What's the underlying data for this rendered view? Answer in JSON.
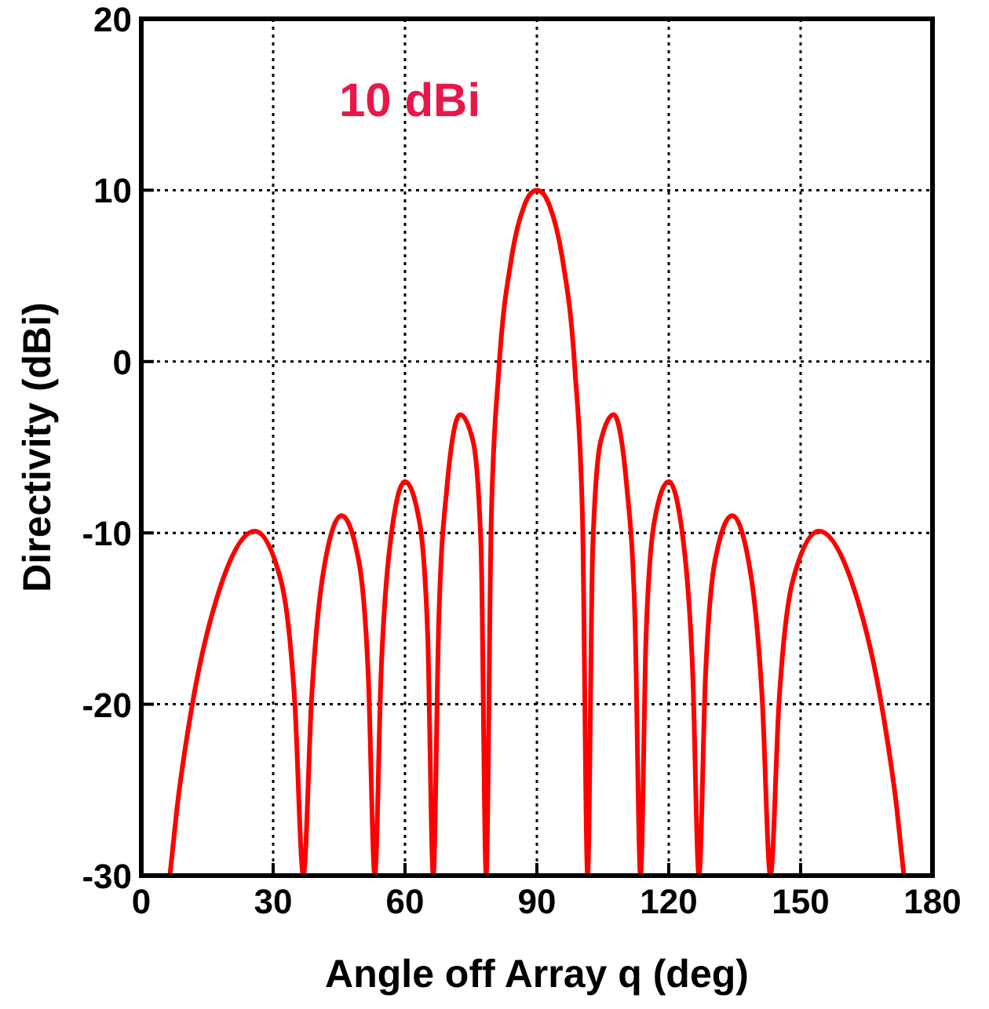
{
  "chart_data": {
    "type": "line",
    "xlabel": "Angle off Array q (deg)",
    "ylabel": "Directivity (dBi)",
    "annotations": [
      "10 dBi"
    ],
    "x": [
      6.5,
      8.11,
      11.48,
      18.19,
      25.84,
      31.79,
      34.92,
      36.87,
      38.74,
      41.41,
      45.57,
      49.46,
      51.68,
      53.13,
      54.55,
      56.63,
      60,
      63.26,
      65.16,
      66.42,
      67.67,
      69.51,
      72.54,
      75.52,
      77.29,
      78.46,
      79.63,
      81.37,
      84.26,
      87.13,
      88.57,
      90,
      91.43,
      92.87,
      95.74,
      98.63,
      100.37,
      101.54,
      102.71,
      104.48,
      107.46,
      110.49,
      112.33,
      113.58,
      114.84,
      116.74,
      120,
      123.37,
      125.45,
      126.87,
      128.32,
      130.54,
      134.43,
      138.59,
      141.26,
      143.13,
      145.08,
      148.21,
      154.16,
      161.81,
      168.52,
      171.89,
      173.5
    ],
    "series": [
      {
        "color": "#ff0000",
        "values": [
          -30,
          -26.1,
          -20.2,
          -13,
          -9.9,
          -12.8,
          -19.9,
          -30,
          -19.7,
          -12.3,
          -9,
          -11.6,
          -18.6,
          -30,
          -18.2,
          -10.6,
          -7,
          -9.3,
          -16,
          -30,
          -15.2,
          -7.4,
          -3.1,
          -4.7,
          -10.8,
          -30,
          -9.1,
          -0.4,
          6.1,
          9.1,
          9.8,
          10,
          9.8,
          9.1,
          6.1,
          -0.4,
          -9.1,
          -30,
          -10.8,
          -4.7,
          -3.1,
          -7.4,
          -15.2,
          -30,
          -16,
          -9.3,
          -7,
          -10.6,
          -18.2,
          -30,
          -18.6,
          -11.6,
          -9,
          -12.3,
          -19.7,
          -30,
          -19.9,
          -12.8,
          -9.9,
          -13,
          -20.2,
          -26.1,
          -30
        ]
      }
    ],
    "xlim": [
      0,
      180
    ],
    "xticks": [
      0,
      30,
      60,
      90,
      120,
      150,
      180
    ],
    "ylim": [
      -30,
      20
    ],
    "yticks": [
      -30,
      -20,
      -10,
      0,
      10,
      20
    ],
    "grid": true,
    "marker": "none",
    "line_style": "solid"
  }
}
